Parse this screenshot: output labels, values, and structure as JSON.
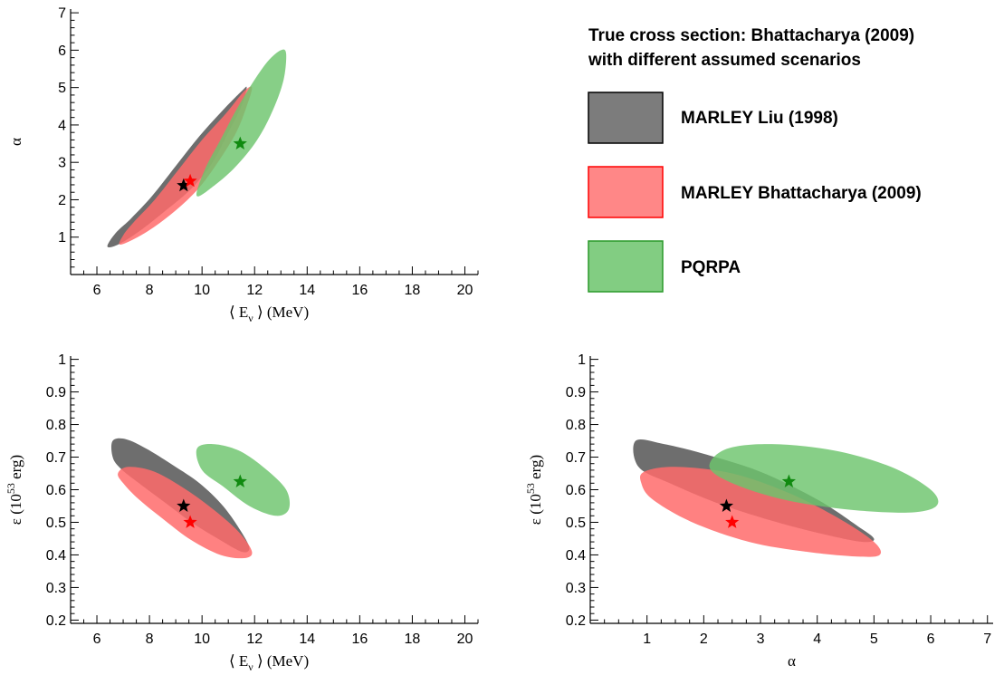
{
  "legend": {
    "title_line1": "True cross section: Bhattacharya (2009)",
    "title_line2": "with different assumed scenarios",
    "entries": [
      {
        "label": "MARLEY Liu (1998)",
        "fill": "#6e6e6e",
        "stroke": "#000000"
      },
      {
        "label": "MARLEY Bhattacharya (2009)",
        "fill": "#ff7a7a",
        "stroke": "#ff0000"
      },
      {
        "label": "PQRPA",
        "fill": "#74c874",
        "stroke": "#2a9a2a"
      }
    ]
  },
  "colors": {
    "gray": "#6e6e6e",
    "red": "#ff6b6b",
    "green": "#6cc46c",
    "star_black": "#000000",
    "star_red": "#ff0000",
    "star_green": "#108a10"
  },
  "chart_data": [
    {
      "type": "scatter",
      "id": "top-left",
      "xlabel": "⟨ E",
      "xlabel_sub": "ν",
      "xlabel_unit": " ⟩ (MeV)",
      "ylabel": "α",
      "xlim": [
        5,
        20.5
      ],
      "ylim": [
        0,
        7.1
      ],
      "xticks": [
        6,
        8,
        10,
        12,
        14,
        16,
        18,
        20
      ],
      "yticks": [
        1,
        2,
        3,
        4,
        5,
        6,
        7
      ],
      "regions": [
        {
          "series": "MARLEY Liu (1998)",
          "color": "gray",
          "points": [
            [
              6.4,
              0.75
            ],
            [
              6.8,
              0.8
            ],
            [
              7.6,
              1.15
            ],
            [
              8.6,
              1.7
            ],
            [
              9.6,
              2.3
            ],
            [
              10.4,
              3.0
            ],
            [
              11.0,
              3.8
            ],
            [
              11.5,
              4.5
            ],
            [
              11.7,
              5.0
            ],
            [
              11.5,
              4.9
            ],
            [
              10.8,
              4.4
            ],
            [
              9.9,
              3.7
            ],
            [
              9.0,
              2.9
            ],
            [
              8.1,
              2.1
            ],
            [
              7.3,
              1.5
            ],
            [
              6.7,
              1.1
            ]
          ]
        },
        {
          "series": "MARLEY Bhattacharya (2009)",
          "color": "red",
          "points": [
            [
              6.9,
              0.8
            ],
            [
              7.8,
              1.1
            ],
            [
              8.8,
              1.6
            ],
            [
              9.8,
              2.25
            ],
            [
              10.6,
              3.0
            ],
            [
              11.3,
              3.8
            ],
            [
              11.7,
              4.5
            ],
            [
              11.9,
              5.0
            ],
            [
              11.6,
              4.9
            ],
            [
              10.9,
              4.3
            ],
            [
              10.0,
              3.6
            ],
            [
              9.1,
              2.8
            ],
            [
              8.2,
              2.0
            ],
            [
              7.4,
              1.4
            ],
            [
              7.0,
              1.05
            ]
          ]
        },
        {
          "series": "PQRPA",
          "color": "green",
          "points": [
            [
              9.8,
              2.1
            ],
            [
              10.5,
              2.4
            ],
            [
              11.3,
              2.9
            ],
            [
              12.1,
              3.6
            ],
            [
              12.7,
              4.4
            ],
            [
              13.1,
              5.2
            ],
            [
              13.2,
              5.9
            ],
            [
              13.0,
              6.0
            ],
            [
              12.5,
              5.7
            ],
            [
              11.9,
              5.1
            ],
            [
              11.3,
              4.4
            ],
            [
              10.7,
              3.6
            ],
            [
              10.1,
              2.8
            ]
          ]
        }
      ],
      "markers": [
        {
          "series": "MARLEY Liu (1998)",
          "x": 9.3,
          "y": 2.38,
          "color": "star_black"
        },
        {
          "series": "MARLEY Bhattacharya (2009)",
          "x": 9.55,
          "y": 2.5,
          "color": "star_red"
        },
        {
          "series": "PQRPA",
          "x": 11.45,
          "y": 3.5,
          "color": "star_green"
        }
      ]
    },
    {
      "type": "scatter",
      "id": "bottom-left",
      "xlabel": "⟨ E",
      "xlabel_sub": "ν",
      "xlabel_unit": " ⟩ (MeV)",
      "ylabel": "ε (10",
      "ylabel_sup": "53",
      "ylabel_unit": " erg)",
      "xlim": [
        5,
        20.5
      ],
      "ylim": [
        0.19,
        1.01
      ],
      "xticks": [
        6,
        8,
        10,
        12,
        14,
        16,
        18,
        20
      ],
      "yticks": [
        0.2,
        0.3,
        0.4,
        0.5,
        0.6,
        0.7,
        0.8,
        0.9,
        1
      ],
      "regions": [
        {
          "series": "MARLEY Liu (1998)",
          "color": "gray",
          "points": [
            [
              6.6,
              0.75
            ],
            [
              7.1,
              0.755
            ],
            [
              7.9,
              0.725
            ],
            [
              8.9,
              0.675
            ],
            [
              9.9,
              0.62
            ],
            [
              10.8,
              0.55
            ],
            [
              11.5,
              0.47
            ],
            [
              11.8,
              0.42
            ],
            [
              11.5,
              0.41
            ],
            [
              10.6,
              0.45
            ],
            [
              9.6,
              0.5
            ],
            [
              8.6,
              0.56
            ],
            [
              7.6,
              0.62
            ],
            [
              6.9,
              0.665
            ],
            [
              6.6,
              0.7
            ]
          ]
        },
        {
          "series": "MARLEY Bhattacharya (2009)",
          "color": "red",
          "points": [
            [
              6.8,
              0.65
            ],
            [
              7.2,
              0.67
            ],
            [
              8.2,
              0.655
            ],
            [
              9.4,
              0.6
            ],
            [
              10.5,
              0.535
            ],
            [
              11.4,
              0.47
            ],
            [
              11.9,
              0.41
            ],
            [
              11.6,
              0.39
            ],
            [
              10.7,
              0.4
            ],
            [
              9.6,
              0.445
            ],
            [
              8.6,
              0.505
            ],
            [
              7.6,
              0.57
            ],
            [
              7.0,
              0.62
            ]
          ]
        },
        {
          "series": "PQRPA",
          "color": "green",
          "points": [
            [
              9.8,
              0.725
            ],
            [
              10.4,
              0.74
            ],
            [
              11.4,
              0.72
            ],
            [
              12.4,
              0.665
            ],
            [
              13.2,
              0.6
            ],
            [
              13.3,
              0.54
            ],
            [
              12.8,
              0.52
            ],
            [
              11.8,
              0.55
            ],
            [
              10.8,
              0.61
            ],
            [
              10.0,
              0.66
            ]
          ]
        }
      ],
      "markers": [
        {
          "series": "MARLEY Liu (1998)",
          "x": 9.3,
          "y": 0.55,
          "color": "star_black"
        },
        {
          "series": "MARLEY Bhattacharya (2009)",
          "x": 9.55,
          "y": 0.5,
          "color": "star_red"
        },
        {
          "series": "PQRPA",
          "x": 11.45,
          "y": 0.625,
          "color": "star_green"
        }
      ]
    },
    {
      "type": "scatter",
      "id": "bottom-right",
      "xlabel": "α",
      "ylabel": "ε (10",
      "ylabel_sup": "53",
      "ylabel_unit": " erg)",
      "xlim": [
        0,
        7.1
      ],
      "ylim": [
        0.19,
        1.01
      ],
      "xticks": [
        1,
        2,
        3,
        4,
        5,
        6,
        7
      ],
      "yticks": [
        0.2,
        0.3,
        0.4,
        0.5,
        0.6,
        0.7,
        0.8,
        0.9,
        1
      ],
      "regions": [
        {
          "series": "MARLEY Liu (1998)",
          "color": "gray",
          "points": [
            [
              0.8,
              0.75
            ],
            [
              1.3,
              0.74
            ],
            [
              2.0,
              0.71
            ],
            [
              3.0,
              0.655
            ],
            [
              4.0,
              0.57
            ],
            [
              4.7,
              0.49
            ],
            [
              5.0,
              0.45
            ],
            [
              4.8,
              0.44
            ],
            [
              4.2,
              0.46
            ],
            [
              3.3,
              0.5
            ],
            [
              2.3,
              0.555
            ],
            [
              1.4,
              0.62
            ],
            [
              0.85,
              0.67
            ]
          ]
        },
        {
          "series": "MARLEY Bhattacharya (2009)",
          "color": "red",
          "points": [
            [
              0.95,
              0.655
            ],
            [
              1.5,
              0.67
            ],
            [
              2.5,
              0.65
            ],
            [
              3.5,
              0.59
            ],
            [
              4.4,
              0.51
            ],
            [
              5.0,
              0.44
            ],
            [
              5.1,
              0.4
            ],
            [
              4.7,
              0.395
            ],
            [
              3.8,
              0.41
            ],
            [
              2.8,
              0.44
            ],
            [
              1.8,
              0.5
            ],
            [
              1.1,
              0.57
            ],
            [
              0.9,
              0.62
            ]
          ]
        },
        {
          "series": "PQRPA",
          "color": "green",
          "points": [
            [
              2.1,
              0.67
            ],
            [
              2.4,
              0.725
            ],
            [
              3.2,
              0.74
            ],
            [
              4.3,
              0.72
            ],
            [
              5.3,
              0.67
            ],
            [
              6.0,
              0.6
            ],
            [
              6.1,
              0.55
            ],
            [
              5.6,
              0.53
            ],
            [
              4.5,
              0.54
            ],
            [
              3.4,
              0.57
            ],
            [
              2.5,
              0.62
            ]
          ]
        }
      ],
      "markers": [
        {
          "series": "MARLEY Liu (1998)",
          "x": 2.4,
          "y": 0.55,
          "color": "star_black"
        },
        {
          "series": "MARLEY Bhattacharya (2009)",
          "x": 2.5,
          "y": 0.5,
          "color": "star_red"
        },
        {
          "series": "PQRPA",
          "x": 3.5,
          "y": 0.625,
          "color": "star_green"
        }
      ]
    }
  ]
}
